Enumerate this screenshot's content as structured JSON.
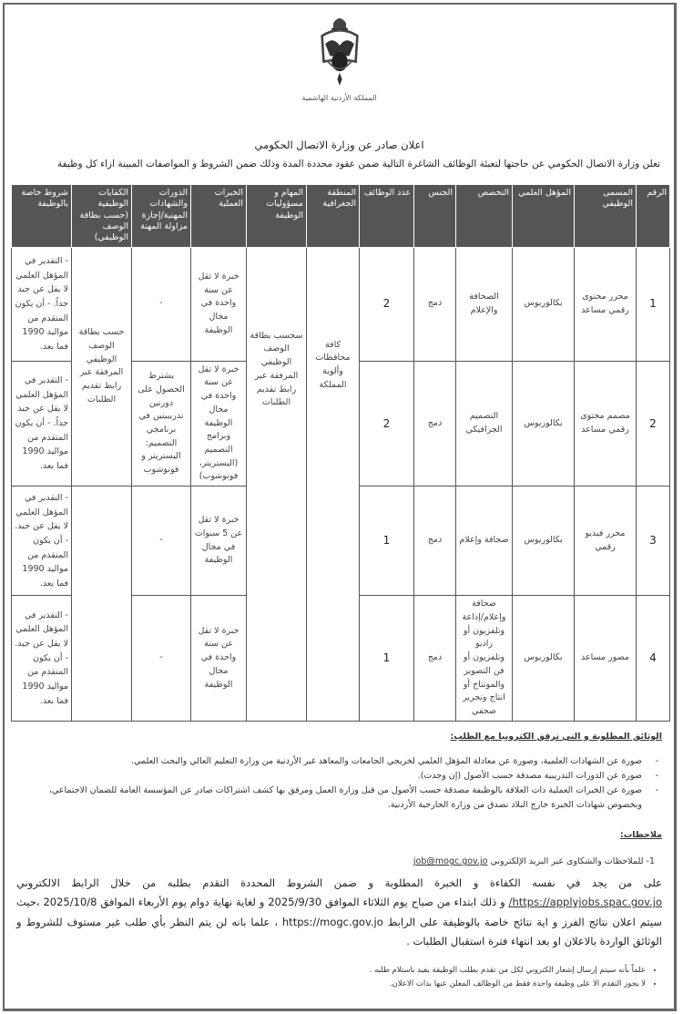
{
  "emblem": {
    "caption": "المملكة الأردنية الهاشمية"
  },
  "title": "اعلان صادر عن وزارة الاتصال الحكومي",
  "intro": "تعلن وزارة الاتصال الحكومي عن حاجتها لتعبئة الوظائف الشاغرة التالية ضمن عقود محددة المدة وذلك ضمن الشروط و المواصفات المبينة ازاء كل وظيفة",
  "table": {
    "headers": [
      "الرقم",
      "المسمى الوظيفي",
      "المؤهل العلمي",
      "التخصص",
      "الجنس",
      "عدد الوظائف",
      "المنطقة الجغرافية",
      "المهام و مسؤوليات الوظيفة",
      "الخبرات العملية",
      "الدورات والشهادات المهنية/إجازة مزاولة المهنة",
      "الكفايات الوظيفية (حسب بطاقة الوصف الوظيفي)",
      "شروط خاصة بالوظيفة"
    ],
    "region": "كافة محافظات وألوية المملكة",
    "tasks": "سحسب بطاقة الوصف الوظيفي المرفقة عبر رابط تقديم الطلبات",
    "competencies": "حسب بطاقة الوصف الوظيفي المرفقة عبر رابط تقديم الطلبات",
    "rows": [
      {
        "no": "1",
        "title": "محرر محتوى رقمي مساعد",
        "degree": "بكالوريوس",
        "major": "الصحافة والإعلام",
        "gender": "دمج",
        "count": "2",
        "experience": "خبرة لا تقل عن سنة واحدة في مجال الوظيفة",
        "courses": "-",
        "conditions": "- التقدير في المؤهل العلمي لا يقل عن جيد جداً. - أن يكون المتقدم من مواليد 1990 فما بعد."
      },
      {
        "no": "2",
        "title": "مصمم محتوى رقمي مساعد",
        "degree": "بكالوريوس",
        "major": "التصميم الجرافيكي",
        "gender": "دمج",
        "count": "2",
        "experience": "خبرة لا تقل عن سنة واحدة في مجال الوظيفة وبرامج التصميم (اليستريتر، فوتوشوب)",
        "courses": "يشترط الحصول على دورتين تدريبيتين في برنامجي التصميم: اليستريتر و فوتوشوب",
        "conditions": "- التقدير في المؤهل العلمي لا يقل عن جيد جداً. - أن يكون المتقدم من مواليد 1990 فما بعد."
      },
      {
        "no": "3",
        "title": "محرر فيديو رقمي",
        "degree": "بكالوريوس",
        "major": "صحافة وإعلام",
        "gender": "دمج",
        "count": "1",
        "experience": "خبرة لا تقل عن 5 سنوات في مجال الوظيفة",
        "courses": "-",
        "conditions": "- التقدير في المؤهل العلمي لا يقل عن جيد. - أن يكون المتقدم من مواليد 1990 فما بعد."
      },
      {
        "no": "4",
        "title": "مصور مساعد",
        "degree": "بكالوريوس",
        "major": "صحافة وإعلام/إذاعة وتلفزيون أو راديو وتلفزيون أو فن التصوير والمونتاج أو انتاج وتحرير صحفي",
        "gender": "دمج",
        "count": "1",
        "experience": "خبرة لا تقل عن سنة واحدة في مجال الوظيفة",
        "courses": "-",
        "conditions": "- التقدير في المؤهل العلمي لا يقل عن جيد. - أن يكون المتقدم من مواليد 1990 فما بعد."
      }
    ]
  },
  "documents": {
    "heading": "الوثائق المطلوبة و التي ترفق الكترونيا مع الطلب:",
    "items": [
      "صورة عن الشهادات العلمية، وصورة عن معادلة المؤهل العلمي لخريجي الجامعات والمعاهد غير الأردنية من وزارة التعليم العالي والبحث العلمي.",
      "صورة عن الدورات التدريبية مصدقة حسب الأصول (إن وجدت).",
      "صورة عن الخبرات العملية ذات العلاقة بالوظيفة مصدقة حسب الأصول من قبل وزارة العمل ومرفق بها كشف اشتراكات صادر عن المؤسسة العامة للضمان الاجتماعي، وبخصوص شهادات الخبرة خارج البلاد تصدق من وزارة الخارجية الأردنية."
    ]
  },
  "notes": {
    "heading": "ملاحظات:",
    "item1_prefix": "1- للملاحظات والشكاوى عبر البريد الإلكتروني",
    "email": "job@mogc.gov.jo",
    "para_a": "على من يجد في نفسه الكفاءة و الخبرة المطلوبة و ضمن الشروط المحددة التقدم بطلبه من خلال الرابط الالكتروني",
    "apply_link": "https://applyjobs.spac.gov.jo/",
    "para_b": "و ذلك ابتداء من صباح يوم الثلاثاء الموافق 2025/9/30 و لغاية نهاية دوام يوم الأربعاء الموافق 2025/10/8 ،حيث سيتم اعلان نتائج الفرز و اية نتائج خاصة بالوظيفة على الرابط https://mogc.gov.jo ، علما بانه لن يتم النظر بأي طلب غير مستوف للشروط و الوثائق الواردة بالاعلان او بعد انتهاء فترة استقبال الطلبات .",
    "bullets": [
      "علماً بأنه سيتم إرسال إشعار الكتروني لكل من تقدم بطلب الوظيفة يفيد باستلام طلبه .",
      "لا يجوز التقدم الا على وظيفة واحدة فقط من الوظائف المعلن عنها بذات الاعلان."
    ]
  }
}
